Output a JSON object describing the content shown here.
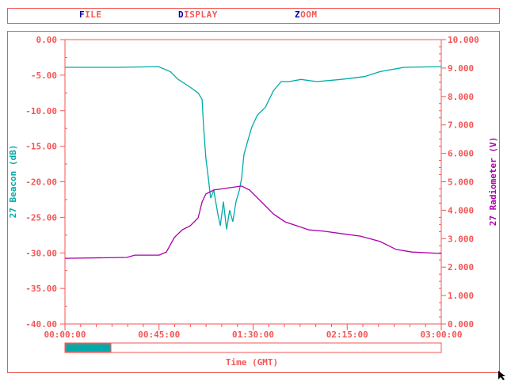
{
  "menu": [
    {
      "hotkey": "F",
      "rest": "ILE"
    },
    {
      "hotkey": "D",
      "rest": "ISPLAY"
    },
    {
      "hotkey": "Z",
      "rest": "OOM"
    }
  ],
  "colors": {
    "axis": "#f55555",
    "beacon": "#00aaaa",
    "radiometer": "#aa00aa",
    "hotkey": "#0000aa"
  },
  "scrollbar": {
    "position_fraction": 0.0,
    "visible_fraction": 0.12
  },
  "chart_data": {
    "type": "line",
    "xlabel": "Time (GMT)",
    "ylabel": "27 Beacon (dB)",
    "y2label": "27 Radiometer (V)",
    "xlim_minutes": [
      0,
      180
    ],
    "x_tick_labels": [
      "00:00:00",
      "00:45:00",
      "01:30:00",
      "02:15:00",
      "03:00:00"
    ],
    "ylim": [
      -40,
      0
    ],
    "y_tick_labels": [
      "0.00",
      "-5.00",
      "-10.00",
      "-15.00",
      "-20.00",
      "-25.00",
      "-30.00",
      "-35.00",
      "-40.00"
    ],
    "y2lim": [
      0,
      10
    ],
    "y2_tick_labels": [
      "10.000",
      "9.000",
      "8.000",
      "7.000",
      "6.000",
      "5.000",
      "4.000",
      "3.000",
      "2.000",
      "1.000",
      "0.000"
    ],
    "grid": false,
    "series": [
      {
        "name": "27 Beacon (dB)",
        "axis": "left",
        "x": [
          0,
          25.8,
          44.7,
          50.4,
          54.2,
          59.9,
          63.7,
          65.6,
          66.3,
          67.4,
          68.6,
          69.7,
          71.2,
          73.1,
          74.3,
          75.8,
          77.3,
          78.8,
          80.3,
          81.8,
          83.4,
          84.5,
          85.6,
          87.2,
          89.4,
          92.1,
          95.9,
          99.7,
          103.4,
          107.2,
          112.9,
          120.5,
          131.9,
          143.2,
          150.8,
          162.2,
          180
        ],
        "y": [
          -3.9,
          -3.9,
          -3.8,
          -4.5,
          -5.6,
          -6.7,
          -7.5,
          -8.4,
          -12.3,
          -16.7,
          -19.5,
          -22.3,
          -21.2,
          -24.5,
          -26.2,
          -22.8,
          -26.7,
          -24,
          -25.6,
          -22.8,
          -21.2,
          -19.5,
          -16.2,
          -14.5,
          -12.3,
          -10.6,
          -9.5,
          -7.2,
          -5.9,
          -5.9,
          -5.6,
          -5.9,
          -5.6,
          -5.2,
          -4.5,
          -3.9,
          -3.8
        ]
      },
      {
        "name": "27 Radiometer (V)",
        "axis": "right",
        "x": [
          0,
          29.6,
          33.4,
          45,
          48.5,
          52.3,
          56.1,
          59.9,
          63.7,
          65.6,
          67.4,
          71.2,
          78.8,
          84.5,
          88.3,
          94,
          99.7,
          105.3,
          111,
          116.7,
          124.3,
          131.9,
          141.3,
          150.8,
          158.4,
          166,
          180
        ],
        "y": [
          2.31,
          2.34,
          2.42,
          2.42,
          2.53,
          3.04,
          3.31,
          3.45,
          3.73,
          4.29,
          4.57,
          4.71,
          4.79,
          4.85,
          4.71,
          4.29,
          3.87,
          3.59,
          3.45,
          3.31,
          3.26,
          3.18,
          3.09,
          2.9,
          2.62,
          2.53,
          2.48
        ]
      }
    ]
  }
}
